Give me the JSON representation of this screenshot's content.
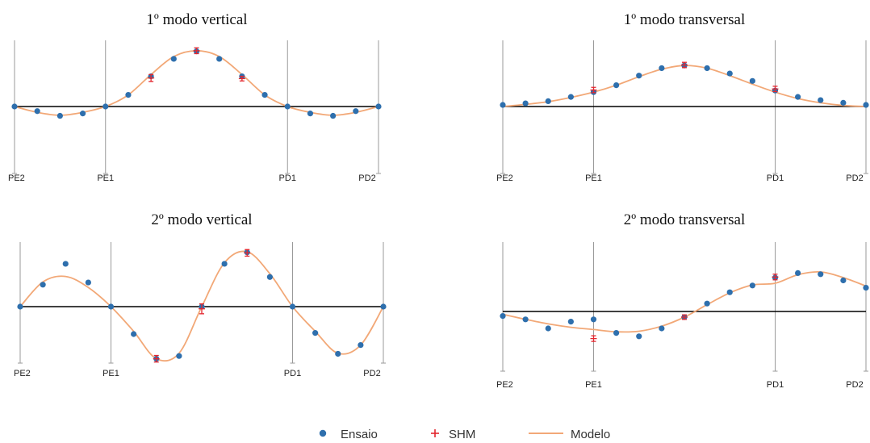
{
  "colors": {
    "ensaio": "#2e6fad",
    "shm": "#e3262e",
    "modelo": "#f2a877",
    "baseline": "#000000",
    "pier": "#9a9a9a"
  },
  "legend": {
    "ensaio_label": "Ensaio",
    "shm_label": "SHM",
    "modelo_label": "Modelo"
  },
  "chart_data": [
    {
      "type": "line",
      "title": "1º modo vertical",
      "piers": [
        {
          "label": "PE2",
          "x": 0
        },
        {
          "label": "PE1",
          "x": 4
        },
        {
          "label": "PD1",
          "x": 12
        },
        {
          "label": "PD2",
          "x": 16
        }
      ],
      "ylim": [
        -1.25,
        1.0
      ],
      "series": [
        {
          "name": "Ensaio",
          "x": [
            0,
            1,
            2,
            3,
            4,
            5,
            6,
            7,
            8,
            9,
            10,
            11,
            12,
            13,
            14,
            15,
            16
          ],
          "y": [
            0,
            -0.08,
            -0.16,
            -0.12,
            0,
            0.2,
            0.52,
            0.82,
            0.95,
            0.82,
            0.52,
            0.2,
            0,
            -0.12,
            -0.16,
            -0.08,
            0
          ]
        },
        {
          "name": "SHM",
          "x": [
            6,
            8,
            10
          ],
          "y": [
            0.49,
            0.96,
            0.48
          ],
          "err": [
            0.06,
            0.05,
            0.04
          ]
        },
        {
          "name": "Modelo",
          "x": [
            0,
            1,
            2,
            3,
            4,
            5,
            6,
            7,
            8,
            9,
            10,
            11,
            12,
            13,
            14,
            15,
            16
          ],
          "y": [
            0,
            -0.1,
            -0.15,
            -0.1,
            0,
            0.2,
            0.55,
            0.86,
            0.96,
            0.86,
            0.55,
            0.2,
            0,
            -0.1,
            -0.15,
            -0.1,
            0
          ]
        }
      ]
    },
    {
      "type": "line",
      "title": "1º modo transversal",
      "piers": [
        {
          "label": "PE2",
          "x": 0
        },
        {
          "label": "PE1",
          "x": 4
        },
        {
          "label": "PD1",
          "x": 12
        },
        {
          "label": "PD2",
          "x": 16
        }
      ],
      "ylim": [
        -1.25,
        1.2
      ],
      "series": [
        {
          "name": "Ensaio",
          "x": [
            0,
            1,
            2,
            3,
            4,
            5,
            6,
            7,
            8,
            9,
            10,
            11,
            12,
            13,
            14,
            15,
            16
          ],
          "y": [
            0.03,
            0.06,
            0.1,
            0.18,
            0.27,
            0.4,
            0.58,
            0.72,
            0.77,
            0.72,
            0.62,
            0.48,
            0.3,
            0.18,
            0.12,
            0.07,
            0.03
          ]
        },
        {
          "name": "SHM",
          "x": [
            4,
            8,
            12
          ],
          "y": [
            0.31,
            0.78,
            0.33
          ],
          "err": [
            0.05,
            0.05,
            0.05
          ]
        },
        {
          "name": "Modelo",
          "x": [
            0,
            1,
            2,
            3,
            4,
            5,
            6,
            7,
            8,
            9,
            10,
            11,
            12,
            13,
            14,
            15,
            16
          ],
          "y": [
            0,
            0.04,
            0.09,
            0.17,
            0.27,
            0.4,
            0.56,
            0.7,
            0.77,
            0.72,
            0.58,
            0.42,
            0.27,
            0.15,
            0.07,
            0.02,
            0
          ]
        }
      ]
    },
    {
      "type": "line",
      "title": "2º modo vertical",
      "piers": [
        {
          "label": "PE2",
          "x": 0
        },
        {
          "label": "PE1",
          "x": 4
        },
        {
          "label": "PD1",
          "x": 12
        },
        {
          "label": "PD2",
          "x": 16
        }
      ],
      "ylim": [
        -1.25,
        1.2
      ],
      "series": [
        {
          "name": "Ensaio",
          "x": [
            0,
            1,
            2,
            3,
            4,
            5,
            6,
            7,
            8,
            9,
            10,
            11,
            12,
            13,
            14,
            15,
            16
          ],
          "y": [
            0,
            0.4,
            0.78,
            0.44,
            0,
            -0.5,
            -0.95,
            -0.9,
            0,
            0.78,
            0.99,
            0.54,
            0,
            -0.48,
            -0.86,
            -0.7,
            0
          ]
        },
        {
          "name": "SHM",
          "x": [
            6,
            8,
            10
          ],
          "y": [
            -0.95,
            -0.04,
            0.98
          ],
          "err": [
            0.06,
            0.09,
            0.06
          ]
        },
        {
          "name": "Modelo",
          "x": [
            0,
            1,
            2,
            3,
            4,
            5,
            6,
            7,
            8,
            9,
            10,
            11,
            12,
            13,
            14,
            15,
            16
          ],
          "y": [
            0,
            0.45,
            0.55,
            0.35,
            0,
            -0.45,
            -0.95,
            -0.85,
            0,
            0.8,
            1.0,
            0.6,
            0,
            -0.45,
            -0.85,
            -0.7,
            0
          ]
        }
      ]
    },
    {
      "type": "line",
      "title": "2º modo transversal",
      "piers": [
        {
          "label": "PE2",
          "x": 0
        },
        {
          "label": "PE1",
          "x": 4
        },
        {
          "label": "PD1",
          "x": 12
        },
        {
          "label": "PD2",
          "x": 16
        }
      ],
      "ylim": [
        -1.25,
        1.2
      ],
      "series": [
        {
          "name": "Ensaio",
          "x": [
            0,
            1,
            2,
            3,
            4,
            5,
            6,
            7,
            8,
            9,
            10,
            11,
            12,
            13,
            14,
            15,
            16
          ],
          "y": [
            -0.08,
            -0.14,
            -0.3,
            -0.18,
            -0.14,
            -0.38,
            -0.44,
            -0.3,
            -0.1,
            0.14,
            0.34,
            0.46,
            0.6,
            0.68,
            0.66,
            0.55,
            0.42
          ]
        },
        {
          "name": "SHM",
          "x": [
            4,
            8,
            12
          ],
          "y": [
            -0.48,
            -0.1,
            0.61
          ],
          "err": [
            0.05,
            0.04,
            0.05
          ]
        },
        {
          "name": "Modelo",
          "x": [
            0,
            1,
            2,
            3,
            4,
            5,
            6,
            7,
            8,
            9,
            10,
            11,
            12,
            13,
            14,
            15,
            16
          ],
          "y": [
            -0.05,
            -0.14,
            -0.22,
            -0.28,
            -0.32,
            -0.36,
            -0.35,
            -0.26,
            -0.1,
            0.12,
            0.33,
            0.47,
            0.5,
            0.65,
            0.7,
            0.6,
            0.45
          ]
        }
      ]
    }
  ]
}
